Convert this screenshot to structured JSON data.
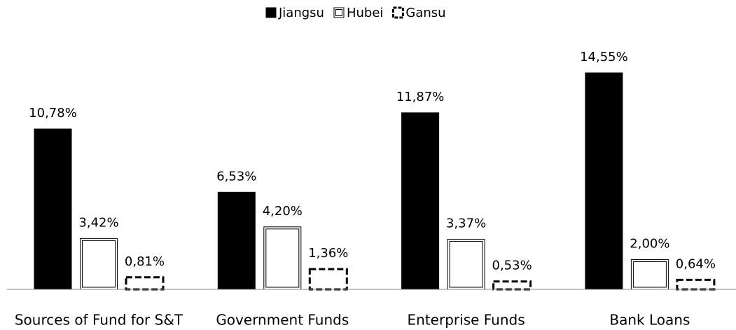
{
  "chart_data": {
    "type": "bar",
    "categories": [
      "Sources of Fund for S&T",
      "Government Funds",
      "Enterprise Funds",
      "Bank Loans"
    ],
    "series": [
      {
        "name": "Jiangsu",
        "color": "#000000",
        "border": "solid",
        "values": [
          10.78,
          6.53,
          11.87,
          14.55
        ],
        "value_labels": [
          "10,78%",
          "6,53%",
          "11,87%",
          "14,55%"
        ]
      },
      {
        "name": "Hubei",
        "color": "#ffffff",
        "border": "double",
        "values": [
          3.42,
          4.2,
          3.37,
          2.0
        ],
        "value_labels": [
          "3,42%",
          "4,20%",
          "3,37%",
          "2,00%"
        ]
      },
      {
        "name": "Gansu",
        "color": "#ffffff",
        "border": "dashed",
        "values": [
          0.81,
          1.36,
          0.53,
          0.64
        ],
        "value_labels": [
          "0,81%",
          "1,36%",
          "0,53%",
          "0,64%"
        ]
      }
    ],
    "legend": "top"
  }
}
